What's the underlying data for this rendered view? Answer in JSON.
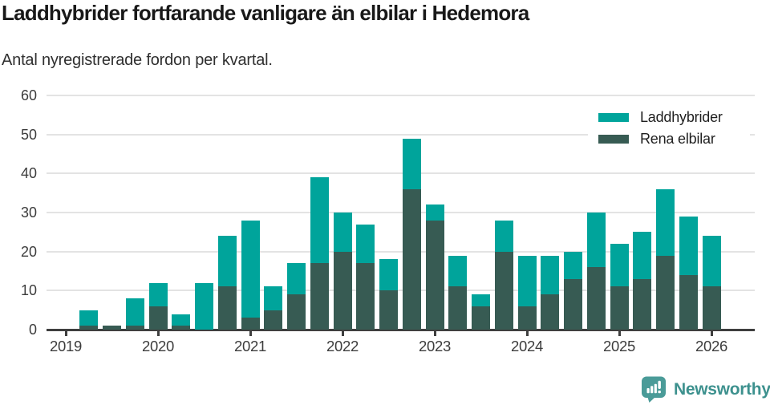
{
  "header": {
    "title": "Laddhybrider fortfarande vanligare än elbilar i Hedemora",
    "subtitle": "Antal nyregistrerade fordon per kvartal."
  },
  "legend": {
    "items": [
      {
        "label": "Laddhybrider",
        "color": "#00A49B"
      },
      {
        "label": "Rena elbilar",
        "color": "#375B53"
      }
    ]
  },
  "footer": {
    "brand": "Newsworthy"
  },
  "colors": {
    "laddhybrider": "#00A49B",
    "rena_elbilar": "#375B53",
    "axis": "#3F3F3F",
    "grid": "#E3E3E3",
    "tick_text": "#3C3C3C",
    "brand_icon": "#4A9B98",
    "brand_text": "#3D918E"
  },
  "chart_data": {
    "type": "bar",
    "stacked": true,
    "title": "Laddhybrider fortfarande vanligare än elbilar i Hedemora",
    "subtitle": "Antal nyregistrerade fordon per kvartal.",
    "xlabel": "",
    "ylabel": "",
    "ylim": [
      0,
      60
    ],
    "yticks": [
      0,
      10,
      20,
      30,
      40,
      50,
      60
    ],
    "grid": "horizontal",
    "legend_position": "top-right",
    "x_tick_labels": [
      "2019",
      "2020",
      "2021",
      "2022",
      "2023",
      "2024",
      "2025",
      "2026"
    ],
    "categories": [
      "2019 K1",
      "2019 K2",
      "2019 K3",
      "2019 K4",
      "2020 K1",
      "2020 K2",
      "2020 K3",
      "2020 K4",
      "2021 K1",
      "2021 K2",
      "2021 K3",
      "2021 K4",
      "2022 K1",
      "2022 K2",
      "2022 K3",
      "2022 K4",
      "2023 K1",
      "2023 K2",
      "2023 K3",
      "2023 K4",
      "2024 K1",
      "2024 K2",
      "2024 K3",
      "2024 K4",
      "2025 K1",
      "2025 K2",
      "2025 K3",
      "2025 K4",
      "2026 K1"
    ],
    "stack_bottom_to_top": [
      "Rena elbilar",
      "Laddhybrider"
    ],
    "series": [
      {
        "name": "Laddhybrider",
        "color": "#00A49B",
        "values": [
          0,
          4,
          0,
          7,
          6,
          3,
          12,
          13,
          25,
          6,
          8,
          22,
          10,
          10,
          8,
          13,
          4,
          8,
          3,
          8,
          13,
          10,
          7,
          14,
          11,
          12,
          17,
          15,
          13
        ]
      },
      {
        "name": "Rena elbilar",
        "color": "#375B53",
        "values": [
          0,
          1,
          1,
          1,
          6,
          1,
          0,
          11,
          3,
          5,
          9,
          17,
          20,
          17,
          10,
          36,
          28,
          11,
          6,
          20,
          6,
          9,
          13,
          16,
          11,
          13,
          19,
          14,
          11
        ]
      }
    ],
    "totals": [
      0,
      5,
      1,
      8,
      12,
      4,
      12,
      24,
      28,
      11,
      17,
      39,
      30,
      27,
      18,
      49,
      32,
      19,
      9,
      28,
      19,
      19,
      20,
      30,
      22,
      25,
      36,
      29,
      24
    ]
  }
}
